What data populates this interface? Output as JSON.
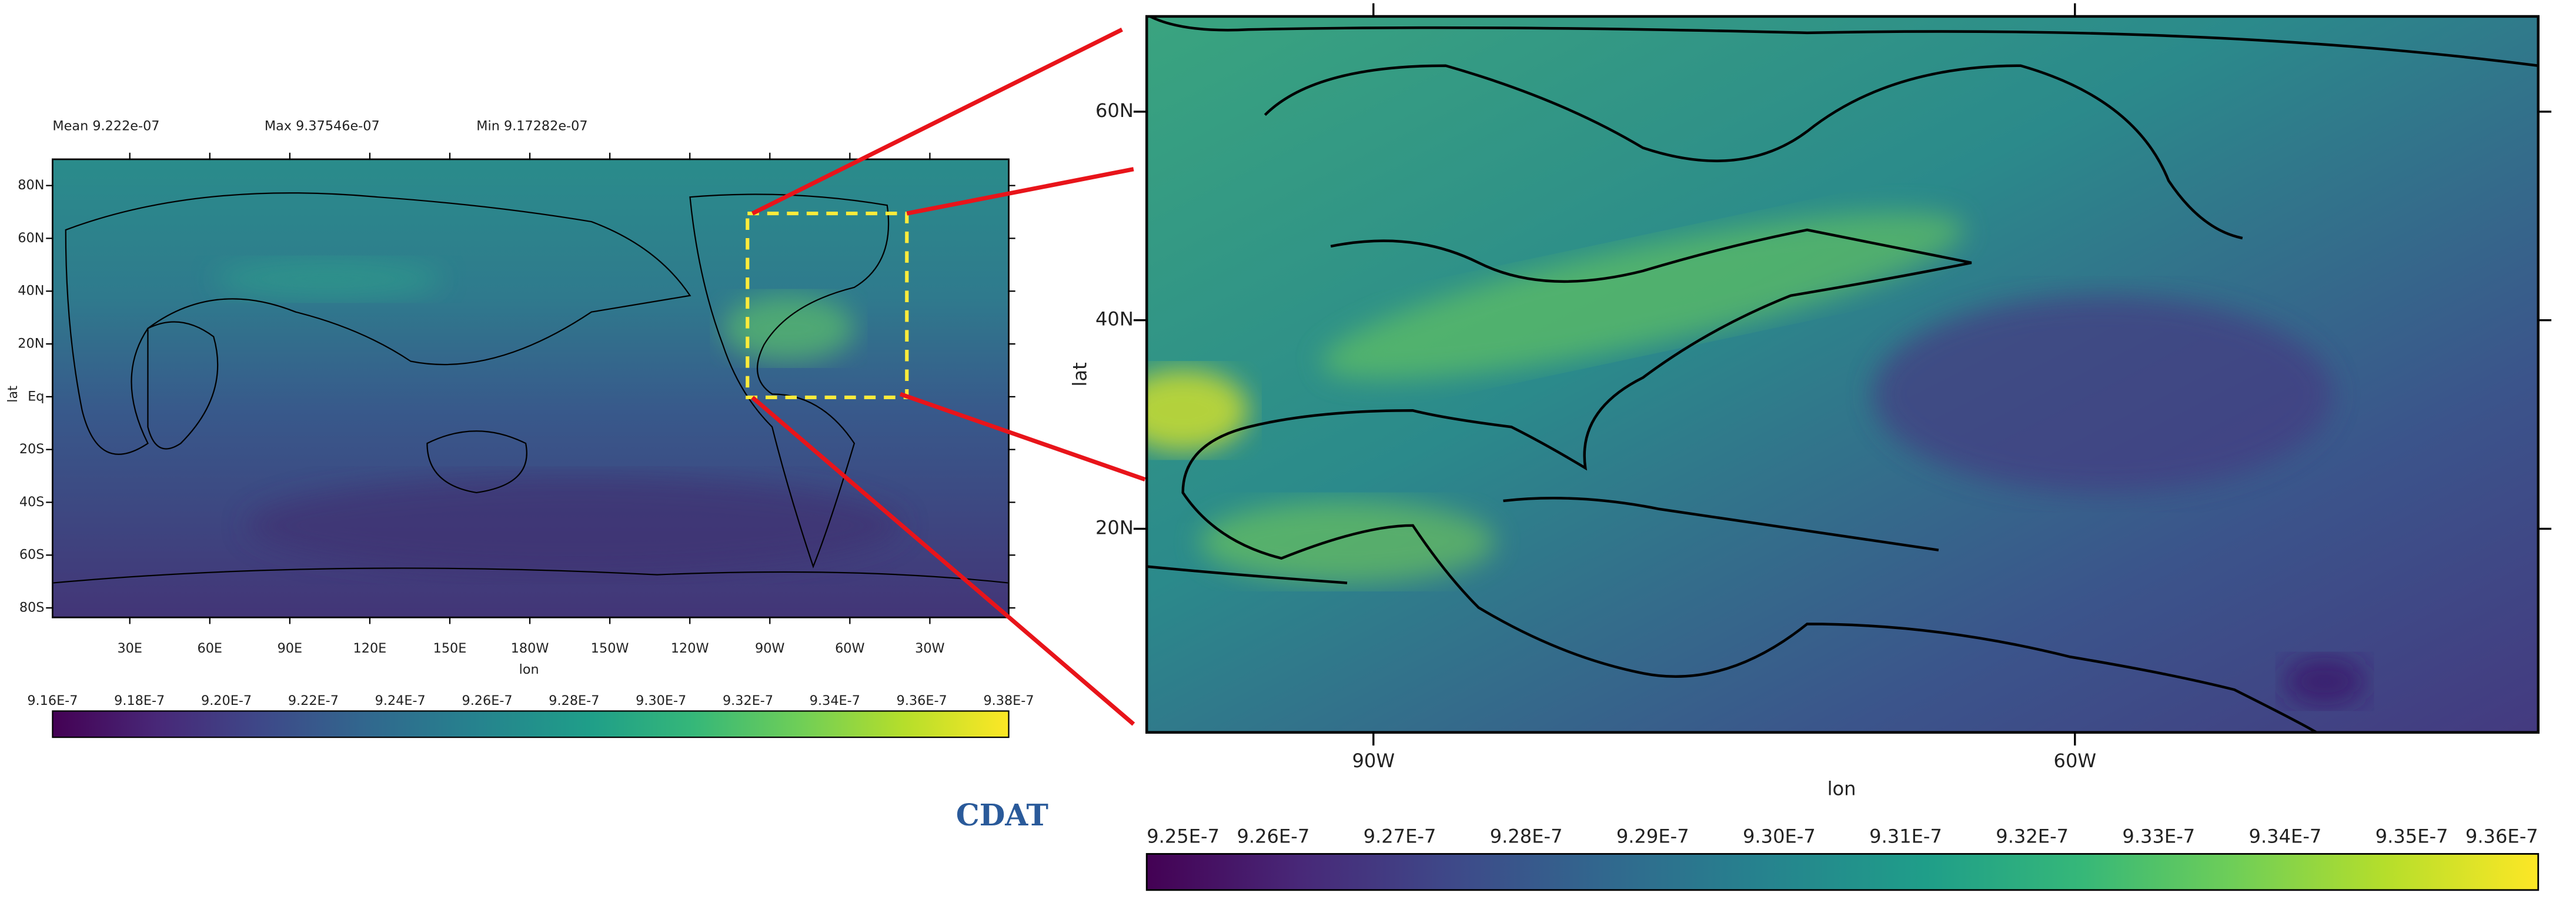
{
  "left_map": {
    "stats": [
      "Mean 9.222e-07",
      "Max 9.37546e-07",
      "Min 9.17282e-07"
    ],
    "lat_labels": [
      "80N",
      "60N",
      "40N",
      "20N",
      "Eq",
      "20S",
      "40S",
      "60S",
      "80S"
    ],
    "lon_labels": [
      "30E",
      "60E",
      "90E",
      "120E",
      "150E",
      "180W",
      "150W",
      "120W",
      "90W",
      "60W",
      "30W"
    ],
    "x_label": "lon",
    "y_label": "lat",
    "colorbar_labels": [
      "9.16E-7",
      "9.18E-7",
      "9.20E-7",
      "9.22E-7",
      "9.24E-7",
      "9.26E-7",
      "9.28E-7",
      "9.30E-7",
      "9.32E-7",
      "9.34E-7",
      "9.36E-7",
      "9.38E-7"
    ]
  },
  "right_map": {
    "lat_labels": [
      "60N",
      "40N",
      "20N"
    ],
    "lon_labels": [
      "90W",
      "60W"
    ],
    "x_label": "lon",
    "y_label": "lat",
    "colorbar_labels": [
      "9.25E-7",
      "9.26E-7",
      "9.27E-7",
      "9.28E-7",
      "9.29E-7",
      "9.30E-7",
      "9.31E-7",
      "9.32E-7",
      "9.33E-7",
      "9.34E-7",
      "9.35E-7",
      "9.36E-7"
    ]
  },
  "logo": "CDAT"
}
